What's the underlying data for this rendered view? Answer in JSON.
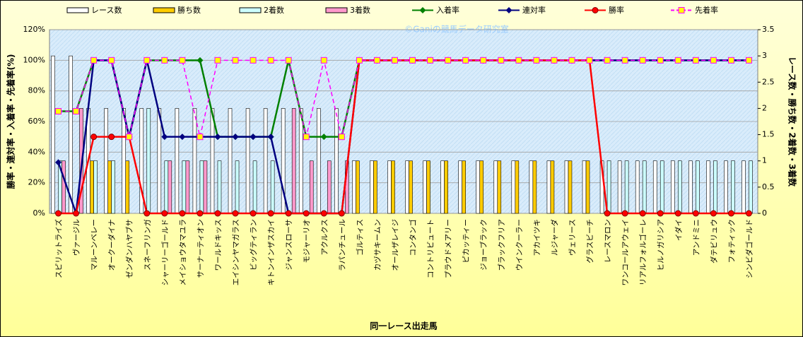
{
  "chart_data": {
    "type": "bar-line",
    "watermark": "©Ganiの競馬データ研究室",
    "xlabel": "同一レース出走馬",
    "ylabel": "勝率・連対率・入着率・先着率(%)",
    "y2label": "レース数・勝ち数・2着数・3着数",
    "categories": [
      "スピリットライズ",
      "ヴァージル",
      "マルーンベレー",
      "オークーダイナ",
      "ゼンダンハヤブサ",
      "スネーフリンガ",
      "シャーリーゴールド",
      "メイショウタマユラ",
      "サーナーティオン",
      "ワールドキッス",
      "エイシンヤマガラス",
      "ビッグティラン",
      "キトンインザスカイ",
      "ジャンスローサ",
      "モジャーリオ",
      "アクルクス",
      "ラパンチュール",
      "ゴルティス",
      "カヅサキームン",
      "オールザレイジ",
      "コンタンゴ",
      "コントリビュート",
      "プラウドメアリー",
      "ピカッティー",
      "ジョーブラック",
      "ブラックフリア",
      "ウインクーラー",
      "アカイツキ",
      "ルジャーダ",
      "ヴェリース",
      "グラスビーチ",
      "レースマロン",
      "ワンコールアウェイ",
      "リアルフォルゴーレ",
      "ヒルノガリシア",
      "イダイ",
      "アンドミニ",
      "ダテビリュウ",
      "フォティック",
      "シンビダゴールド"
    ],
    "ylim": [
      0,
      120
    ],
    "yticks": [
      {
        "value": 0,
        "label": "0%"
      },
      {
        "value": 20,
        "label": "20%"
      },
      {
        "value": 40,
        "label": "40%"
      },
      {
        "value": 60,
        "label": "60%"
      },
      {
        "value": 80,
        "label": "80%"
      },
      {
        "value": 100,
        "label": "100%"
      },
      {
        "value": 120,
        "label": "120%"
      }
    ],
    "y2lim": [
      0,
      3.5
    ],
    "y2ticks": [
      0,
      0.5,
      1,
      1.5,
      2,
      2.5,
      3,
      3.5
    ],
    "grid": true,
    "series": [
      {
        "name": "レース数",
        "type": "bar",
        "axis": "y2",
        "color": "#ffffff",
        "values": [
          3,
          3,
          2,
          2,
          2,
          2,
          2,
          2,
          2,
          2,
          2,
          2,
          2,
          2,
          2,
          2,
          2,
          1,
          1,
          1,
          1,
          1,
          1,
          1,
          1,
          1,
          1,
          1,
          1,
          1,
          1,
          1,
          1,
          1,
          1,
          1,
          1,
          1,
          1,
          1
        ]
      },
      {
        "name": "勝ち数",
        "type": "bar",
        "axis": "y2",
        "color": "#ffcc00",
        "values": [
          0,
          0,
          1,
          1,
          1,
          0,
          0,
          0,
          0,
          0,
          0,
          0,
          0,
          0,
          0,
          0,
          0,
          1,
          1,
          1,
          1,
          1,
          1,
          1,
          1,
          1,
          1,
          1,
          1,
          1,
          1,
          0,
          0,
          0,
          0,
          0,
          0,
          0,
          0,
          0
        ]
      },
      {
        "name": "2着数",
        "type": "bar",
        "axis": "y2",
        "color": "#ccffff",
        "values": [
          1,
          0,
          1,
          1,
          0,
          2,
          1,
          1,
          1,
          1,
          1,
          1,
          1,
          0,
          0,
          0,
          0,
          0,
          0,
          0,
          0,
          0,
          0,
          0,
          0,
          0,
          0,
          0,
          0,
          0,
          0,
          1,
          1,
          1,
          1,
          1,
          1,
          1,
          1,
          1
        ]
      },
      {
        "name": "3着数",
        "type": "bar",
        "axis": "y2",
        "color": "#ff99cc",
        "values": [
          1,
          2,
          0,
          0,
          0,
          0,
          1,
          1,
          1,
          0,
          0,
          0,
          0,
          2,
          1,
          1,
          1,
          0,
          0,
          0,
          0,
          0,
          0,
          0,
          0,
          0,
          0,
          0,
          0,
          0,
          0,
          0,
          0,
          0,
          0,
          0,
          0,
          0,
          0,
          0
        ]
      },
      {
        "name": "入着率",
        "type": "line",
        "color": "#008000",
        "marker": "diamond",
        "values": [
          66.7,
          66.7,
          100,
          100,
          50,
          100,
          100,
          100,
          100,
          50,
          50,
          50,
          50,
          100,
          50,
          50,
          50,
          100,
          100,
          100,
          100,
          100,
          100,
          100,
          100,
          100,
          100,
          100,
          100,
          100,
          100,
          100,
          100,
          100,
          100,
          100,
          100,
          100,
          100,
          100
        ]
      },
      {
        "name": "連対率",
        "type": "line",
        "color": "#000080",
        "marker": "diamond",
        "values": [
          33.3,
          0,
          100,
          100,
          50,
          100,
          50,
          50,
          50,
          50,
          50,
          50,
          50,
          0,
          0,
          0,
          0,
          100,
          100,
          100,
          100,
          100,
          100,
          100,
          100,
          100,
          100,
          100,
          100,
          100,
          100,
          100,
          100,
          100,
          100,
          100,
          100,
          100,
          100,
          100
        ]
      },
      {
        "name": "勝率",
        "type": "line",
        "color": "#ff0000",
        "marker": "circle",
        "values": [
          0,
          0,
          50,
          50,
          50,
          0,
          0,
          0,
          0,
          0,
          0,
          0,
          0,
          0,
          0,
          0,
          0,
          100,
          100,
          100,
          100,
          100,
          100,
          100,
          100,
          100,
          100,
          100,
          100,
          100,
          100,
          0,
          0,
          0,
          0,
          0,
          0,
          0,
          0,
          0
        ]
      },
      {
        "name": "先着率",
        "type": "line",
        "color": "#ff00ff",
        "marker": "square",
        "dashed": true,
        "values": [
          66.7,
          66.7,
          100,
          100,
          50,
          100,
          100,
          100,
          50,
          100,
          100,
          100,
          100,
          100,
          50,
          100,
          50,
          100,
          100,
          100,
          100,
          100,
          100,
          100,
          100,
          100,
          100,
          100,
          100,
          100,
          100,
          100,
          100,
          100,
          100,
          100,
          100,
          100,
          100,
          100
        ]
      }
    ]
  }
}
